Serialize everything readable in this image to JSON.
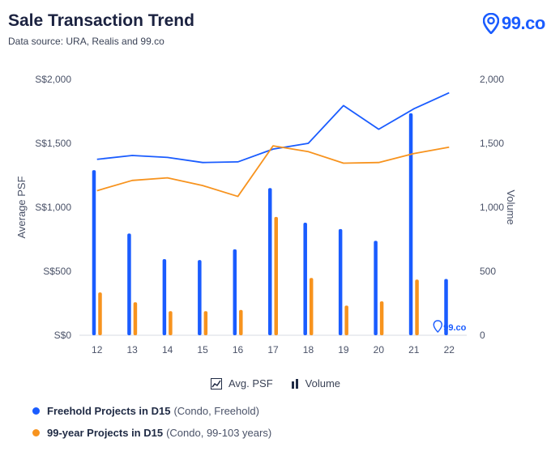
{
  "header": {
    "title": "Sale Transaction Trend",
    "subtitle": "Data source: URA, Realis and 99.co",
    "brand": "99.co"
  },
  "legend_inline": {
    "line_label": "Avg. PSF",
    "bar_label": "Volume"
  },
  "legend": [
    {
      "name": "Freehold Projects in D15",
      "desc": "(Condo, Freehold)",
      "color": "#1a5cff"
    },
    {
      "name": "99-year Projects in D15",
      "desc": "(Condo, 99-103 years)",
      "color": "#f7931e"
    }
  ],
  "watermark": "99.co",
  "chart_data": {
    "type": "bar+line",
    "categories": [
      "12",
      "13",
      "14",
      "15",
      "16",
      "17",
      "18",
      "19",
      "20",
      "21",
      "22"
    ],
    "xlabel": "",
    "ylabel_left": "Average PSF",
    "ylabel_right": "Volume",
    "ylim_left": [
      0,
      2000
    ],
    "ylim_right": [
      0,
      2000
    ],
    "yticks_left": [
      "S$0",
      "S$500",
      "S$1,000",
      "S$1,500",
      "S$2,000"
    ],
    "yticks_right": [
      "0",
      "500",
      "1,000",
      "1,500",
      "2,000"
    ],
    "bars": [
      {
        "name": "Freehold Projects in D15 Volume",
        "color": "#1a5cff",
        "values": [
          1290,
          795,
          595,
          588,
          672,
          1150,
          880,
          830,
          738,
          1735,
          440
        ]
      },
      {
        "name": "99-year Projects in D15 Volume",
        "color": "#f7931e",
        "values": [
          335,
          258,
          188,
          188,
          198,
          925,
          448,
          232,
          265,
          435,
          0
        ]
      }
    ],
    "lines": [
      {
        "name": "Freehold Projects in D15 Avg. PSF",
        "color": "#1a5cff",
        "values": [
          1375,
          1405,
          1390,
          1350,
          1355,
          1455,
          1500,
          1795,
          1610,
          1770,
          1895
        ]
      },
      {
        "name": "99-year Projects in D15 Avg. PSF",
        "color": "#f7931e",
        "values": [
          1130,
          1210,
          1230,
          1170,
          1085,
          1480,
          1435,
          1345,
          1350,
          1420,
          1470
        ]
      }
    ],
    "grid": false
  }
}
